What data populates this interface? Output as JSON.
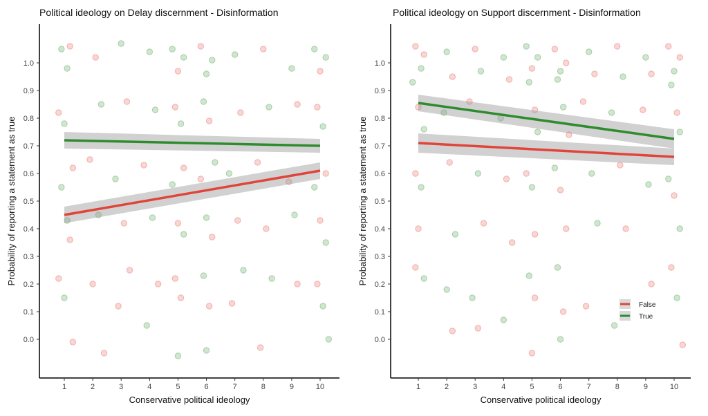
{
  "legend": {
    "entries": [
      {
        "label": "False",
        "color": "#e0443a"
      },
      {
        "label": "True",
        "color": "#2e8b2e"
      }
    ],
    "placement": "bottom-right of second panel"
  },
  "chart_data": [
    {
      "type": "scatter",
      "title": "Political ideology on Delay discernment - Disinformation",
      "xlabel": "Conservative political ideology",
      "ylabel": "Probability of reporting a statement as true",
      "xlim": [
        0.12,
        10.66
      ],
      "ylim": [
        -0.14,
        1.14
      ],
      "xticks": [
        "1",
        "2",
        "3",
        "4",
        "5",
        "6",
        "7",
        "8",
        "9",
        "10"
      ],
      "yticks": [
        "0.0",
        "0.1",
        "0.2",
        "0.3",
        "0.4",
        "0.5",
        "0.6",
        "0.7",
        "0.8",
        "0.9",
        "1.0"
      ],
      "grid": false,
      "colors": {
        "False": "#e0443a",
        "True": "#2e8b2e"
      },
      "fits": [
        {
          "name": "False",
          "x": [
            1,
            10
          ],
          "y": [
            0.45,
            0.61
          ],
          "ci_low": [
            0.42,
            0.58
          ],
          "ci_high": [
            0.48,
            0.64
          ]
        },
        {
          "name": "True",
          "x": [
            1,
            10
          ],
          "y": [
            0.72,
            0.7
          ],
          "ci_low": [
            0.69,
            0.675
          ],
          "ci_high": [
            0.75,
            0.725
          ]
        }
      ],
      "points": [
        [
          0.9,
          1.05,
          "T"
        ],
        [
          1.1,
          0.98,
          "T"
        ],
        [
          1.2,
          1.06,
          "F"
        ],
        [
          0.8,
          0.82,
          "F"
        ],
        [
          1.0,
          0.78,
          "T"
        ],
        [
          1.3,
          0.62,
          "F"
        ],
        [
          0.9,
          0.55,
          "T"
        ],
        [
          1.1,
          0.43,
          "T"
        ],
        [
          1.2,
          0.36,
          "F"
        ],
        [
          0.8,
          0.22,
          "F"
        ],
        [
          1.0,
          0.15,
          "T"
        ],
        [
          1.3,
          -0.01,
          "F"
        ],
        [
          2.1,
          1.02,
          "F"
        ],
        [
          2.3,
          0.85,
          "T"
        ],
        [
          1.9,
          0.65,
          "F"
        ],
        [
          2.2,
          0.45,
          "T"
        ],
        [
          2.0,
          0.2,
          "F"
        ],
        [
          2.4,
          -0.05,
          "F"
        ],
        [
          3.0,
          1.07,
          "T"
        ],
        [
          3.2,
          0.86,
          "F"
        ],
        [
          2.8,
          0.58,
          "T"
        ],
        [
          3.1,
          0.42,
          "F"
        ],
        [
          3.3,
          0.25,
          "F"
        ],
        [
          2.9,
          0.12,
          "F"
        ],
        [
          4.0,
          1.04,
          "T"
        ],
        [
          4.2,
          0.83,
          "T"
        ],
        [
          3.8,
          0.63,
          "F"
        ],
        [
          4.1,
          0.44,
          "T"
        ],
        [
          4.3,
          0.2,
          "F"
        ],
        [
          3.9,
          0.05,
          "T"
        ],
        [
          4.8,
          1.05,
          "T"
        ],
        [
          5.0,
          0.97,
          "F"
        ],
        [
          5.2,
          1.02,
          "T"
        ],
        [
          4.9,
          0.84,
          "F"
        ],
        [
          5.1,
          0.78,
          "T"
        ],
        [
          5.2,
          0.62,
          "F"
        ],
        [
          4.8,
          0.56,
          "T"
        ],
        [
          5.0,
          0.42,
          "F"
        ],
        [
          5.2,
          0.38,
          "T"
        ],
        [
          4.9,
          0.22,
          "F"
        ],
        [
          5.1,
          0.15,
          "F"
        ],
        [
          5.0,
          -0.06,
          "T"
        ],
        [
          5.8,
          1.06,
          "F"
        ],
        [
          6.0,
          0.96,
          "T"
        ],
        [
          6.2,
          1.01,
          "T"
        ],
        [
          5.9,
          0.86,
          "T"
        ],
        [
          6.1,
          0.79,
          "F"
        ],
        [
          6.3,
          0.64,
          "T"
        ],
        [
          5.8,
          0.58,
          "F"
        ],
        [
          6.0,
          0.44,
          "T"
        ],
        [
          6.2,
          0.37,
          "F"
        ],
        [
          5.9,
          0.23,
          "T"
        ],
        [
          6.1,
          0.12,
          "F"
        ],
        [
          6.0,
          -0.04,
          "T"
        ],
        [
          7.0,
          1.03,
          "T"
        ],
        [
          7.2,
          0.82,
          "F"
        ],
        [
          6.8,
          0.6,
          "T"
        ],
        [
          7.1,
          0.43,
          "F"
        ],
        [
          7.3,
          0.25,
          "T"
        ],
        [
          6.9,
          0.13,
          "F"
        ],
        [
          8.0,
          1.05,
          "F"
        ],
        [
          8.2,
          0.84,
          "T"
        ],
        [
          7.8,
          0.64,
          "F"
        ],
        [
          8.1,
          0.4,
          "F"
        ],
        [
          8.3,
          0.22,
          "T"
        ],
        [
          7.9,
          -0.03,
          "F"
        ],
        [
          9.0,
          0.98,
          "T"
        ],
        [
          9.2,
          0.85,
          "F"
        ],
        [
          8.9,
          0.57,
          "F"
        ],
        [
          9.1,
          0.45,
          "T"
        ],
        [
          9.2,
          0.2,
          "F"
        ],
        [
          9.8,
          1.05,
          "T"
        ],
        [
          10.0,
          0.97,
          "F"
        ],
        [
          10.2,
          1.02,
          "T"
        ],
        [
          9.9,
          0.84,
          "F"
        ],
        [
          10.1,
          0.77,
          "T"
        ],
        [
          10.2,
          0.6,
          "F"
        ],
        [
          9.8,
          0.55,
          "T"
        ],
        [
          10.0,
          0.43,
          "F"
        ],
        [
          10.2,
          0.35,
          "T"
        ],
        [
          9.9,
          0.2,
          "F"
        ],
        [
          10.1,
          0.12,
          "T"
        ],
        [
          10.3,
          0.0,
          "T"
        ]
      ]
    },
    {
      "type": "scatter",
      "title": "Political ideology on Support discernment - Disinformation",
      "xlabel": "Conservative political ideology",
      "ylabel": "Probability of reporting a statement as true",
      "xlim": [
        0.12,
        10.66
      ],
      "ylim": [
        -0.14,
        1.14
      ],
      "xticks": [
        "1",
        "2",
        "3",
        "4",
        "5",
        "6",
        "7",
        "8",
        "9",
        "10"
      ],
      "yticks": [
        "0.0",
        "0.1",
        "0.2",
        "0.3",
        "0.4",
        "0.5",
        "0.6",
        "0.7",
        "0.8",
        "0.9",
        "1.0"
      ],
      "grid": false,
      "colors": {
        "False": "#e0443a",
        "True": "#2e8b2e"
      },
      "fits": [
        {
          "name": "False",
          "x": [
            1,
            10
          ],
          "y": [
            0.71,
            0.66
          ],
          "ci_low": [
            0.675,
            0.63
          ],
          "ci_high": [
            0.745,
            0.69
          ]
        },
        {
          "name": "True",
          "x": [
            1,
            10
          ],
          "y": [
            0.855,
            0.725
          ],
          "ci_low": [
            0.825,
            0.69
          ],
          "ci_high": [
            0.885,
            0.76
          ]
        }
      ],
      "points": [
        [
          0.9,
          1.06,
          "F"
        ],
        [
          1.1,
          0.98,
          "T"
        ],
        [
          1.2,
          1.03,
          "F"
        ],
        [
          0.8,
          0.93,
          "T"
        ],
        [
          1.0,
          0.84,
          "F"
        ],
        [
          1.2,
          0.76,
          "T"
        ],
        [
          0.9,
          0.6,
          "F"
        ],
        [
          1.1,
          0.55,
          "T"
        ],
        [
          1.0,
          0.4,
          "F"
        ],
        [
          1.2,
          0.22,
          "T"
        ],
        [
          0.9,
          0.26,
          "F"
        ],
        [
          2.0,
          1.04,
          "T"
        ],
        [
          2.2,
          0.95,
          "F"
        ],
        [
          1.9,
          0.82,
          "T"
        ],
        [
          2.1,
          0.64,
          "F"
        ],
        [
          2.3,
          0.38,
          "T"
        ],
        [
          2.0,
          0.18,
          "T"
        ],
        [
          2.2,
          0.03,
          "F"
        ],
        [
          3.0,
          1.05,
          "F"
        ],
        [
          3.2,
          0.97,
          "T"
        ],
        [
          2.8,
          0.86,
          "F"
        ],
        [
          3.1,
          0.6,
          "T"
        ],
        [
          3.3,
          0.42,
          "F"
        ],
        [
          2.9,
          0.15,
          "T"
        ],
        [
          3.1,
          0.04,
          "F"
        ],
        [
          4.0,
          1.02,
          "T"
        ],
        [
          4.2,
          0.94,
          "F"
        ],
        [
          3.9,
          0.8,
          "T"
        ],
        [
          4.1,
          0.58,
          "F"
        ],
        [
          4.3,
          0.35,
          "F"
        ],
        [
          4.0,
          0.07,
          "T"
        ],
        [
          4.8,
          1.06,
          "T"
        ],
        [
          5.0,
          0.98,
          "F"
        ],
        [
          5.2,
          1.02,
          "T"
        ],
        [
          4.9,
          0.93,
          "T"
        ],
        [
          5.1,
          0.83,
          "F"
        ],
        [
          5.2,
          0.75,
          "T"
        ],
        [
          4.8,
          0.6,
          "F"
        ],
        [
          5.0,
          0.55,
          "T"
        ],
        [
          5.1,
          0.38,
          "F"
        ],
        [
          4.9,
          0.23,
          "T"
        ],
        [
          5.1,
          0.15,
          "F"
        ],
        [
          5.0,
          -0.05,
          "F"
        ],
        [
          5.8,
          1.05,
          "F"
        ],
        [
          6.0,
          0.97,
          "T"
        ],
        [
          6.2,
          1.0,
          "F"
        ],
        [
          5.9,
          0.94,
          "T"
        ],
        [
          6.1,
          0.84,
          "T"
        ],
        [
          6.3,
          0.74,
          "F"
        ],
        [
          5.8,
          0.62,
          "T"
        ],
        [
          6.0,
          0.54,
          "F"
        ],
        [
          6.2,
          0.4,
          "F"
        ],
        [
          5.9,
          0.26,
          "T"
        ],
        [
          6.1,
          0.1,
          "F"
        ],
        [
          6.0,
          0.0,
          "T"
        ],
        [
          7.0,
          1.04,
          "T"
        ],
        [
          7.2,
          0.96,
          "F"
        ],
        [
          6.8,
          0.86,
          "F"
        ],
        [
          7.1,
          0.6,
          "T"
        ],
        [
          7.3,
          0.42,
          "T"
        ],
        [
          6.9,
          0.12,
          "F"
        ],
        [
          8.0,
          1.06,
          "F"
        ],
        [
          8.2,
          0.95,
          "T"
        ],
        [
          7.8,
          0.82,
          "T"
        ],
        [
          8.1,
          0.63,
          "F"
        ],
        [
          8.3,
          0.4,
          "F"
        ],
        [
          7.9,
          0.05,
          "T"
        ],
        [
          9.0,
          1.02,
          "T"
        ],
        [
          9.2,
          0.96,
          "F"
        ],
        [
          8.9,
          0.83,
          "F"
        ],
        [
          9.1,
          0.56,
          "T"
        ],
        [
          9.2,
          0.2,
          "F"
        ],
        [
          9.8,
          1.06,
          "F"
        ],
        [
          10.0,
          0.97,
          "T"
        ],
        [
          10.2,
          1.02,
          "F"
        ],
        [
          9.9,
          0.92,
          "T"
        ],
        [
          10.1,
          0.82,
          "F"
        ],
        [
          10.2,
          0.75,
          "T"
        ],
        [
          9.8,
          0.58,
          "T"
        ],
        [
          10.0,
          0.52,
          "F"
        ],
        [
          10.2,
          0.4,
          "T"
        ],
        [
          9.9,
          0.26,
          "F"
        ],
        [
          10.1,
          0.15,
          "T"
        ],
        [
          10.3,
          -0.02,
          "F"
        ]
      ]
    }
  ]
}
